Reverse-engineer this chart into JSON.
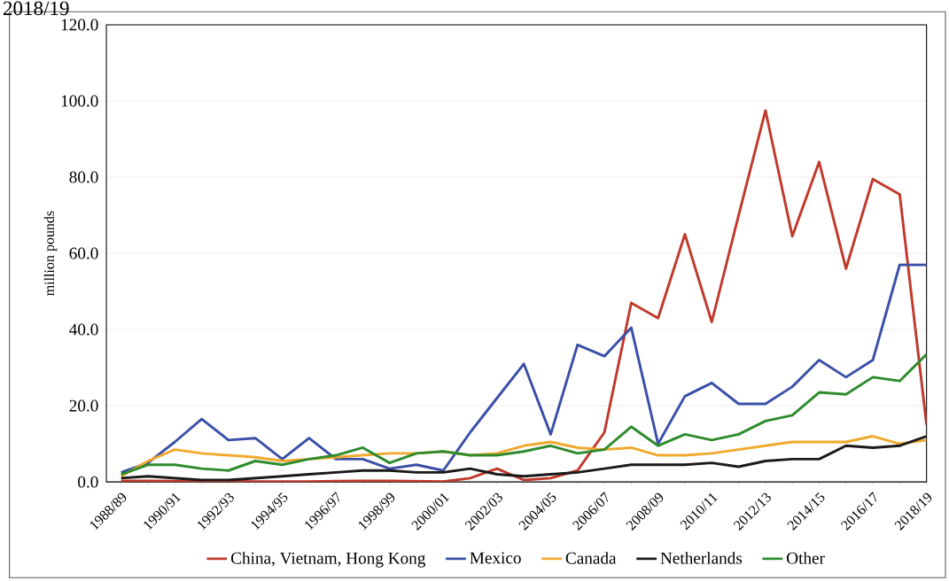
{
  "chart_data": {
    "type": "line",
    "title": "2018/19",
    "ylabel": "million pounds",
    "categories": [
      "1988/89",
      null,
      "1990/91",
      null,
      "1992/93",
      null,
      "1994/95",
      null,
      "1996/97",
      null,
      "1998/99",
      null,
      "2000/01",
      null,
      "2002/03",
      null,
      "2004/05",
      null,
      "2006/07",
      null,
      "2008/09",
      null,
      "2010/11",
      null,
      "2012/13",
      null,
      "2014/15",
      null,
      "2016/17",
      null,
      "2018/19"
    ],
    "series": [
      {
        "name": "China, Vietnam, Hong Kong",
        "color": "#c0392b",
        "values": [
          0.3,
          0.3,
          0.2,
          0.2,
          0.2,
          0.1,
          0.1,
          0.1,
          0.2,
          0.3,
          0.3,
          0.2,
          0.1,
          1.0,
          3.5,
          0.5,
          1.0,
          3.0,
          13.0,
          47.0,
          43.0,
          65.0,
          42.0,
          70.0,
          97.5,
          64.5,
          84.0,
          56.0,
          79.5,
          75.5,
          15.0
        ]
      },
      {
        "name": "Mexico",
        "color": "#3a4fa8",
        "values": [
          2.5,
          5,
          10.5,
          16.5,
          11,
          11.5,
          6,
          11.5,
          6,
          6,
          3.5,
          4.5,
          3,
          13,
          22,
          31,
          12.5,
          36,
          33,
          40.5,
          10,
          22.5,
          26,
          20.5,
          20.5,
          25,
          32,
          27.5,
          32,
          57,
          57
        ]
      },
      {
        "name": "Canada",
        "color": "#f0a92c",
        "values": [
          1.5,
          5.5,
          8.5,
          7.5,
          7,
          6.5,
          5.5,
          6,
          6.5,
          7,
          7.5,
          7.5,
          8,
          7,
          7.5,
          9.5,
          10.5,
          9,
          8.5,
          9,
          7,
          7,
          7.5,
          8.5,
          9.5,
          10.5,
          10.5,
          10.5,
          12,
          10,
          11
        ]
      },
      {
        "name": "Netherlands",
        "color": "#1a1a1a",
        "values": [
          1,
          1.5,
          1,
          0.5,
          0.5,
          1,
          1.5,
          2,
          2.5,
          3,
          3,
          2.5,
          2.5,
          3.5,
          2,
          1.5,
          2,
          2.5,
          3.5,
          4.5,
          4.5,
          4.5,
          5,
          4,
          5.5,
          6,
          6,
          9.5,
          9,
          9.5,
          12
        ]
      },
      {
        "name": "Other",
        "color": "#2e8b2e",
        "values": [
          2,
          4.5,
          4.5,
          3.5,
          3,
          5.5,
          4.5,
          6,
          7,
          9,
          5,
          7.5,
          8,
          7,
          7,
          8,
          9.5,
          7.5,
          8.5,
          14.5,
          9.5,
          12.5,
          11,
          12.5,
          16,
          17.5,
          23.5,
          23,
          27.5,
          26.5,
          33.5
        ]
      }
    ],
    "ylim": [
      0,
      120
    ],
    "yticks": [
      {
        "value": 0,
        "label": "0.0"
      },
      {
        "value": 20,
        "label": "20.0"
      },
      {
        "value": 40,
        "label": "40.0"
      },
      {
        "value": 60,
        "label": "60.0"
      },
      {
        "value": 80,
        "label": "80.0"
      },
      {
        "value": 100,
        "label": "100.0"
      },
      {
        "value": 120,
        "label": "120.0"
      }
    ],
    "grid": "y",
    "legend": "bottom",
    "marker": "none",
    "line_style": "solid"
  }
}
